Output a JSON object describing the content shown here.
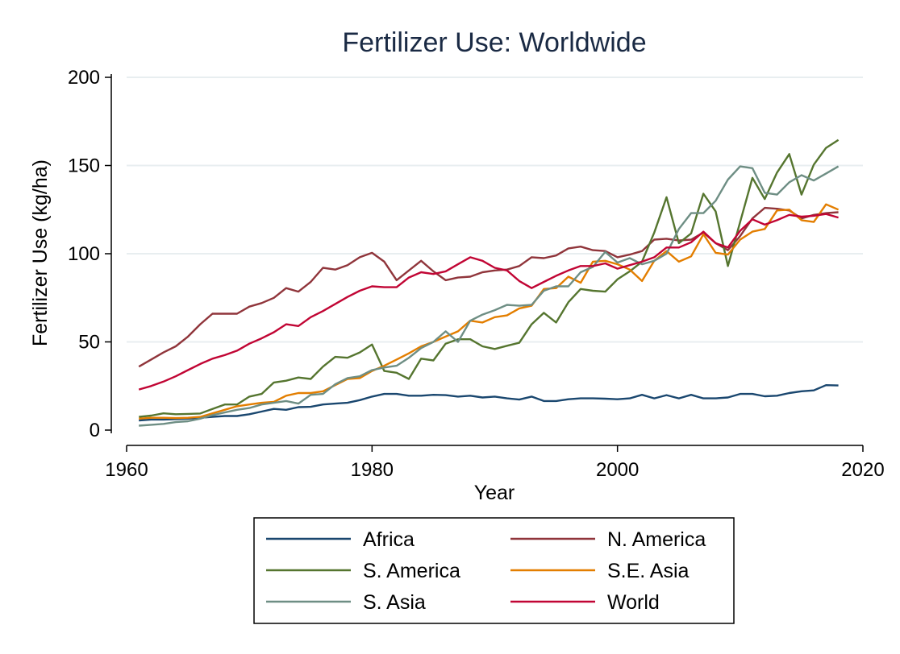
{
  "chart_data": {
    "type": "line",
    "title": "Fertilizer Use: Worldwide",
    "xlabel": "Year",
    "ylabel": "Fertilizer Use (kg/ha)",
    "xlim": [
      1960,
      2020
    ],
    "ylim": [
      0,
      200
    ],
    "xticks": [
      1960,
      1980,
      2000,
      2020
    ],
    "yticks": [
      0,
      50,
      100,
      150,
      200
    ],
    "grid": "horizontal",
    "legend_position": "bottom",
    "x": [
      1961,
      1962,
      1963,
      1964,
      1965,
      1966,
      1967,
      1968,
      1969,
      1970,
      1971,
      1972,
      1973,
      1974,
      1975,
      1976,
      1977,
      1978,
      1979,
      1980,
      1981,
      1982,
      1983,
      1984,
      1985,
      1986,
      1987,
      1988,
      1989,
      1990,
      1991,
      1992,
      1993,
      1994,
      1995,
      1996,
      1997,
      1998,
      1999,
      2000,
      2001,
      2002,
      2003,
      2004,
      2005,
      2006,
      2007,
      2008,
      2009,
      2010,
      2011,
      2012,
      2013,
      2014,
      2015,
      2016,
      2017,
      2018
    ],
    "series": [
      {
        "name": "Africa",
        "color": "#1a476f",
        "values": [
          5.5,
          6,
          6,
          6.2,
          6.5,
          7,
          7.5,
          8,
          8,
          9,
          10.5,
          12,
          11.5,
          13,
          13.2,
          14.5,
          15,
          15.5,
          17,
          19,
          20.5,
          20.5,
          19.5,
          19.5,
          20,
          19.8,
          19,
          19.5,
          18.5,
          19,
          18,
          17.3,
          19,
          16.5,
          16.5,
          17.5,
          18,
          18,
          17.8,
          17.5,
          18,
          20,
          18,
          19.8,
          18,
          20,
          18,
          18,
          18.5,
          20.5,
          20.5,
          19.2,
          19.5,
          21,
          22,
          22.5,
          25.5,
          25.3
        ]
      },
      {
        "name": "N. America",
        "color": "#90353b",
        "values": [
          36,
          40,
          44,
          47.5,
          53,
          60,
          66,
          66,
          66,
          70,
          72,
          75,
          80.5,
          78.5,
          84,
          92,
          91,
          93.5,
          98,
          100.5,
          95.5,
          85,
          90.5,
          96,
          90,
          85,
          86.5,
          87,
          89.5,
          90.5,
          91,
          93,
          98,
          97.5,
          99,
          103,
          104,
          102,
          101.5,
          98,
          99.5,
          101.5,
          108,
          108.5,
          107.5,
          108,
          112,
          106,
          102,
          110,
          120,
          126,
          125.5,
          124.5,
          120,
          122,
          123,
          123.5
        ]
      },
      {
        "name": "S. America",
        "color": "#55752f",
        "values": [
          7.5,
          8.2,
          9.5,
          9,
          9.2,
          9.4,
          12,
          14.5,
          14.5,
          19,
          20.5,
          27,
          28,
          29.8,
          29,
          36,
          41.5,
          41,
          44,
          48.5,
          33.5,
          32.5,
          29,
          40.5,
          39.5,
          49,
          51.5,
          51.5,
          47.5,
          46,
          47.8,
          49.5,
          60,
          66.5,
          61,
          72.5,
          80,
          79,
          78.5,
          85.5,
          90,
          95.5,
          112,
          132,
          106,
          111.5,
          134,
          124,
          93,
          118,
          143,
          131,
          146,
          156.5,
          133.5,
          150.5,
          160,
          164.5
        ]
      },
      {
        "name": "S.E. Asia",
        "color": "#e37e00",
        "values": [
          6.5,
          7,
          7,
          6.8,
          7,
          7.5,
          9.5,
          11.5,
          13.5,
          14.5,
          15.5,
          16,
          19.5,
          21,
          21,
          22,
          25.5,
          29,
          29.5,
          33.5,
          36.5,
          40,
          43.5,
          47.5,
          50,
          53,
          56,
          62,
          61,
          64,
          65,
          69,
          70.5,
          80,
          80.5,
          87,
          83.5,
          95.5,
          96,
          94,
          91,
          84.5,
          96,
          101.5,
          95.5,
          98.5,
          111,
          100.5,
          99.5,
          108,
          112.5,
          114,
          124.5,
          125,
          119,
          118,
          128,
          125
        ]
      },
      {
        "name": "S. Asia",
        "color": "#6e8e84",
        "values": [
          2.5,
          3,
          3.5,
          4.5,
          5,
          6.5,
          8.5,
          10,
          11.5,
          12.5,
          14.5,
          15.5,
          16.5,
          15,
          20,
          20.5,
          26,
          29.5,
          30.5,
          34,
          35.5,
          36.5,
          41,
          46.5,
          50,
          56,
          50,
          62,
          65.5,
          68,
          71,
          70.5,
          71,
          79,
          81.5,
          81.5,
          89.5,
          92.5,
          101,
          95,
          97.5,
          94,
          96,
          100,
          114,
          123,
          123,
          130,
          142,
          149.5,
          148.5,
          134.5,
          133.5,
          140.5,
          144.5,
          141.5,
          145.5,
          149.5
        ]
      },
      {
        "name": "World",
        "color": "#c10534",
        "values": [
          23,
          25,
          27.5,
          30.5,
          34,
          37.5,
          40.5,
          42.5,
          45,
          49,
          52,
          55.5,
          60,
          59,
          64,
          67.5,
          71.5,
          75.5,
          79,
          81.5,
          81,
          81,
          86.5,
          89.5,
          88.5,
          90,
          94,
          98,
          96,
          92,
          90.5,
          84.5,
          80.5,
          84,
          87.5,
          90.5,
          93,
          93,
          94.5,
          91.5,
          93.5,
          95.5,
          98,
          103.5,
          103.5,
          106.5,
          112.5,
          106,
          103.5,
          113,
          119.5,
          116.5,
          119,
          122,
          121,
          121.5,
          122.5,
          120.5
        ]
      }
    ]
  }
}
